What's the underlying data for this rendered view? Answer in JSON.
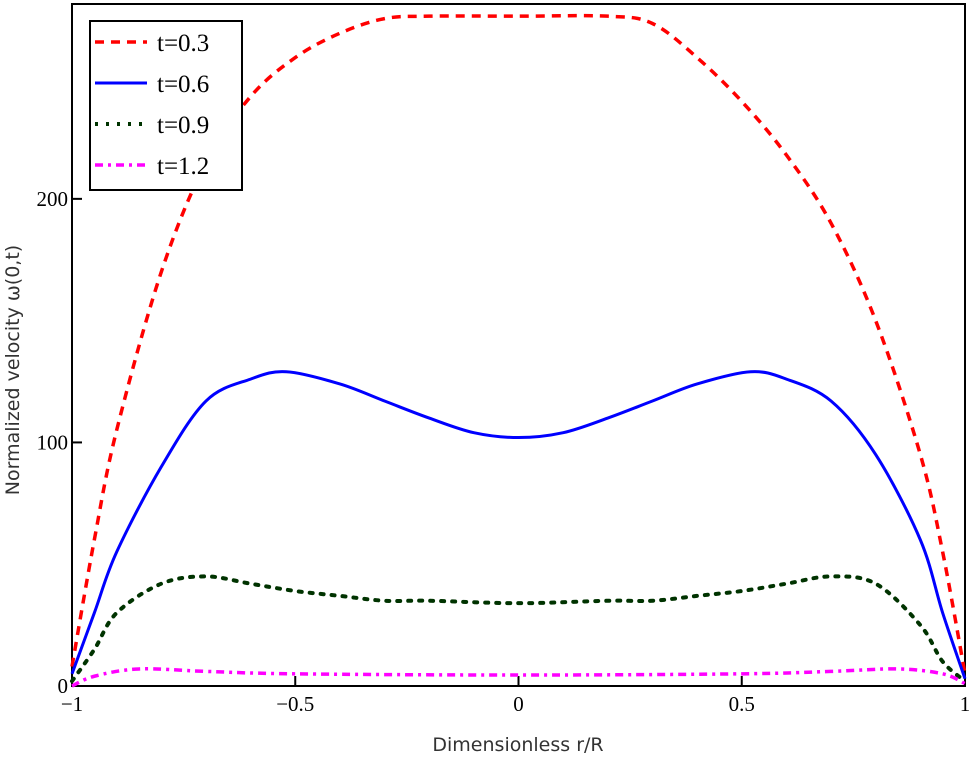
{
  "chart_data": {
    "type": "line",
    "title": "",
    "xlabel": "Dimensionless r/R",
    "ylabel": "Normalized velocity ω(0,t)",
    "xlim": [
      -1,
      1
    ],
    "ylim": [
      0,
      280
    ],
    "xticks": [
      -1,
      -0.5,
      0,
      0.5,
      1
    ],
    "xtick_labels": [
      "−1",
      "−0.5",
      "0",
      "0.5",
      "1"
    ],
    "yticks": [
      0,
      100,
      200
    ],
    "ytick_labels": [
      "0",
      "100",
      "200"
    ],
    "legend_position": "top-left",
    "series": [
      {
        "name": "t=0.3",
        "color": "#ff0000",
        "style": "dashed",
        "x": [
          -1,
          -0.95,
          -0.9,
          -0.8,
          -0.7,
          -0.6,
          -0.5,
          -0.4,
          -0.3,
          -0.2,
          0,
          0.2,
          0.3,
          0.4,
          0.5,
          0.6,
          0.7,
          0.8,
          0.9,
          0.95,
          1
        ],
        "y": [
          8,
          60,
          105,
          170,
          215,
          242,
          258,
          268,
          274,
          275,
          275,
          275,
          272,
          258,
          240,
          218,
          190,
          150,
          95,
          55,
          5
        ]
      },
      {
        "name": "t=0.6",
        "color": "#0000ff",
        "style": "solid",
        "x": [
          -1,
          -0.95,
          -0.9,
          -0.8,
          -0.7,
          -0.6,
          -0.52,
          -0.4,
          -0.3,
          -0.2,
          -0.1,
          0,
          0.1,
          0.2,
          0.3,
          0.4,
          0.52,
          0.6,
          0.7,
          0.8,
          0.9,
          0.95,
          1
        ],
        "y": [
          5,
          30,
          55,
          90,
          117,
          126,
          129,
          124,
          117,
          110,
          104,
          102,
          104,
          110,
          117,
          124,
          129,
          126,
          117,
          95,
          60,
          30,
          3
        ]
      },
      {
        "name": "t=0.9",
        "color": "#003300",
        "style": "dotted",
        "x": [
          -1,
          -0.95,
          -0.9,
          -0.8,
          -0.7,
          -0.6,
          -0.5,
          -0.4,
          -0.3,
          -0.2,
          0,
          0.2,
          0.3,
          0.4,
          0.5,
          0.6,
          0.7,
          0.8,
          0.9,
          0.95,
          1
        ],
        "y": [
          2,
          15,
          30,
          42,
          45,
          42,
          39,
          37,
          35,
          35,
          34,
          35,
          35,
          37,
          39,
          42,
          45,
          42,
          25,
          10,
          2
        ]
      },
      {
        "name": "t=1.2",
        "color": "#ff00ff",
        "style": "dashdot",
        "x": [
          -1,
          -0.95,
          -0.85,
          -0.7,
          -0.5,
          0,
          0.5,
          0.7,
          0.85,
          0.95,
          1
        ],
        "y": [
          0,
          4,
          7,
          6,
          5,
          4.5,
          5,
          6,
          7,
          5,
          1
        ]
      }
    ]
  }
}
